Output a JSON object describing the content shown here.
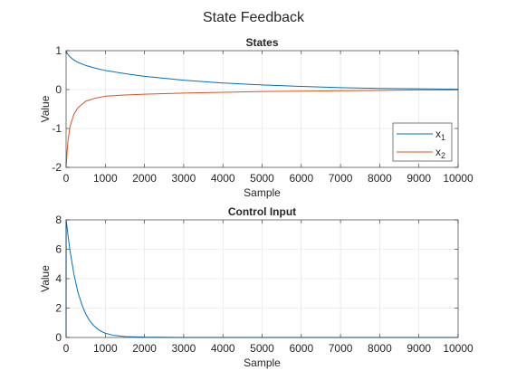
{
  "figure_title": "State Feedback",
  "chart_data": [
    {
      "type": "line",
      "title": "States",
      "xlabel": "Sample",
      "ylabel": "Value",
      "xlim": [
        0,
        10000
      ],
      "ylim": [
        -2,
        1
      ],
      "xticks": [
        "0",
        "1000",
        "2000",
        "3000",
        "4000",
        "5000",
        "6000",
        "7000",
        "8000",
        "9000",
        "10000"
      ],
      "yticks": [
        "-2",
        "-1",
        "0",
        "1"
      ],
      "grid": true,
      "legend_position": "bottom-right",
      "series": [
        {
          "name": "x1",
          "color": "#0072bd",
          "x": [
            0,
            25,
            50,
            100,
            200,
            300,
            500,
            750,
            1000,
            1500,
            2000,
            3000,
            4000,
            5000,
            6000,
            7000,
            8000,
            9000,
            10000
          ],
          "values": [
            1.0,
            0.94,
            0.9,
            0.84,
            0.76,
            0.7,
            0.62,
            0.55,
            0.49,
            0.41,
            0.34,
            0.24,
            0.17,
            0.12,
            0.08,
            0.05,
            0.03,
            0.02,
            0.01
          ]
        },
        {
          "name": "x2",
          "color": "#d95319",
          "x": [
            0,
            25,
            50,
            100,
            200,
            300,
            500,
            750,
            1000,
            1500,
            2000,
            3000,
            4000,
            5000,
            6000,
            7000,
            8000,
            9000,
            10000
          ],
          "values": [
            -2.0,
            -1.6,
            -1.3,
            -0.95,
            -0.63,
            -0.47,
            -0.3,
            -0.22,
            -0.17,
            -0.14,
            -0.12,
            -0.09,
            -0.07,
            -0.05,
            -0.04,
            -0.03,
            -0.02,
            -0.01,
            -0.01
          ]
        }
      ]
    },
    {
      "type": "line",
      "title": "Control Input",
      "xlabel": "Sample",
      "ylabel": "Value",
      "xlim": [
        0,
        10000
      ],
      "ylim": [
        0,
        8
      ],
      "xticks": [
        "0",
        "1000",
        "2000",
        "3000",
        "4000",
        "5000",
        "6000",
        "7000",
        "8000",
        "9000",
        "10000"
      ],
      "yticks": [
        "0",
        "2",
        "4",
        "6",
        "8"
      ],
      "grid": true,
      "series": [
        {
          "name": "",
          "color": "#0072bd",
          "x": [
            0,
            1,
            25,
            50,
            100,
            200,
            300,
            400,
            500,
            600,
            700,
            800,
            900,
            1000,
            1200,
            1500,
            2000,
            3000,
            5000,
            10000
          ],
          "values": [
            0,
            8.0,
            7.5,
            6.9,
            5.9,
            4.3,
            3.1,
            2.25,
            1.6,
            1.15,
            0.82,
            0.58,
            0.41,
            0.29,
            0.15,
            0.06,
            0.02,
            0.0,
            0.0,
            0.0
          ]
        }
      ]
    }
  ]
}
